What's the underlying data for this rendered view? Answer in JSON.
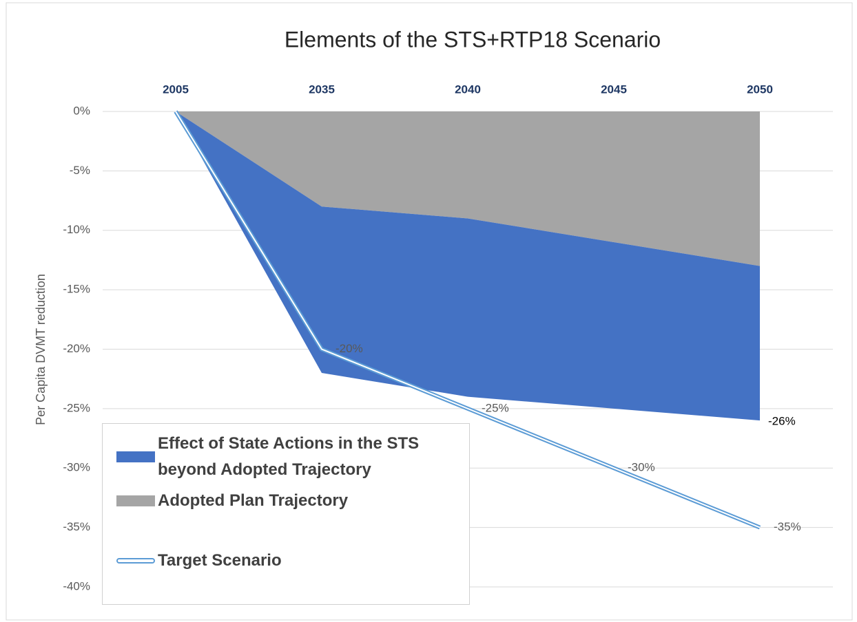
{
  "chart_data": {
    "type": "stacked_area",
    "title": "Elements of the STS+RTP18 Scenario",
    "y_label": "Per Capita DVMT reduction",
    "categories": [
      "2005",
      "2035",
      "2040",
      "2045",
      "2050"
    ],
    "series": [
      {
        "name": "Effect of State Actions in the STS beyond Adopted Trajectory",
        "type": "area",
        "color": "#4472c4",
        "values": [
          0,
          -14,
          -15,
          -14,
          -13
        ]
      },
      {
        "name": "Adopted Plan Trajectory",
        "type": "area",
        "color": "#a5a5a5",
        "values": [
          0,
          -8,
          -9,
          -11,
          -13
        ]
      },
      {
        "name": "Target Scenario",
        "type": "line",
        "color": "#5b9bd5",
        "values": [
          0,
          -20,
          -25,
          -30,
          -35
        ],
        "value_labels": [
          null,
          "-20%",
          "-25%",
          "-30%",
          "-35%"
        ]
      }
    ],
    "annotations": [
      {
        "text": "-26%",
        "category": 4
      }
    ],
    "ylim": [
      -40,
      0
    ],
    "yticks": [
      {
        "value": 0,
        "label": "0%"
      },
      {
        "value": -5,
        "label": "-5%"
      },
      {
        "value": -10,
        "label": "-10%"
      },
      {
        "value": -15,
        "label": "-15%"
      },
      {
        "value": -20,
        "label": "-20%"
      },
      {
        "value": -25,
        "label": "-25%"
      },
      {
        "value": -30,
        "label": "-30%"
      },
      {
        "value": -35,
        "label": "-35%"
      },
      {
        "value": -40,
        "label": "-40%"
      }
    ],
    "grid": true
  }
}
